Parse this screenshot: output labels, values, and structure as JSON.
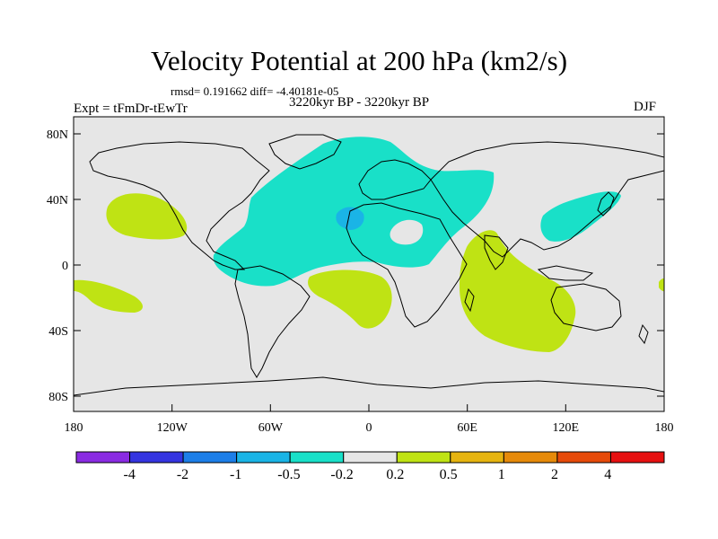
{
  "title": "Velocity Potential at 200 hPa (km2/s)",
  "stats": "rmsd= 0.191662 diff= -4.40181e-05",
  "experiment": "Expt = tFmDr-tEwTr",
  "period": "3220kyr BP - 3220kyr BP",
  "season": "DJF",
  "lat_labels": [
    "80N",
    "40N",
    "0",
    "40S",
    "80S"
  ],
  "lon_labels": [
    "180",
    "120W",
    "60W",
    "0",
    "60E",
    "120E",
    "180"
  ],
  "colorbar": {
    "colors": [
      "#8a2be2",
      "#3434e0",
      "#1c7ee8",
      "#1ab4e6",
      "#19e0c8",
      "#e6e6e6",
      "#bfe314",
      "#e6b410",
      "#e68a0a",
      "#e64a0a",
      "#e61010"
    ],
    "labels": [
      "-4",
      "-2",
      "-1",
      "-0.5",
      "-0.2",
      "0.2",
      "0.5",
      "1",
      "2",
      "4"
    ]
  },
  "fill_colors": {
    "ocean_bg": "#e6e6e6",
    "negative_weak": "#19e0c8",
    "negative_moderate": "#1ab4e6",
    "positive_weak": "#bfe314"
  }
}
